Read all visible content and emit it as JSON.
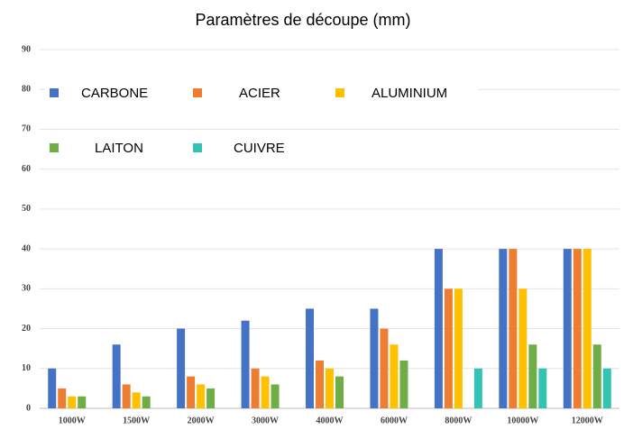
{
  "chart_data": {
    "type": "bar",
    "title": "Paramètres de découpe (mm)",
    "categories": [
      "1000W",
      "1500W",
      "2000W",
      "3000W",
      "4000W",
      "6000W",
      "8000W",
      "10000W",
      "12000W"
    ],
    "series": [
      {
        "name": "CARBONE",
        "color": "#4472c4",
        "values": [
          10,
          16,
          20,
          22,
          25,
          25,
          40,
          40,
          40
        ]
      },
      {
        "name": "ACIER",
        "color": "#ed7d31",
        "values": [
          5,
          6,
          8,
          10,
          12,
          20,
          30,
          40,
          40
        ]
      },
      {
        "name": "ALUMINIUM",
        "color": "#ffc000",
        "values": [
          3,
          4,
          6,
          8,
          10,
          16,
          30,
          30,
          40
        ]
      },
      {
        "name": "LAITON",
        "color": "#70ad47",
        "values": [
          3,
          3,
          5,
          6,
          8,
          12,
          null,
          16,
          16
        ]
      },
      {
        "name": "CUIVRE",
        "color": "#33c3b3",
        "values": [
          null,
          null,
          null,
          null,
          null,
          null,
          10,
          10,
          10
        ]
      }
    ],
    "ylim": [
      0,
      90
    ],
    "yticks": [
      0,
      10,
      20,
      30,
      40,
      50,
      60,
      70,
      80,
      90
    ],
    "grid": true
  }
}
